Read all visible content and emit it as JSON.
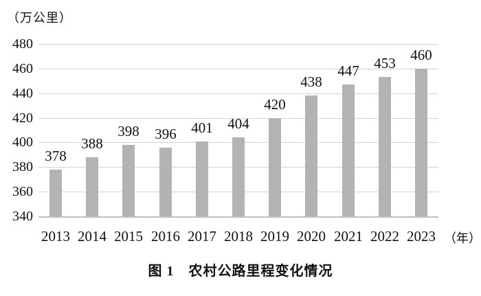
{
  "chart_data": {
    "type": "bar",
    "title": "图 1　农村公路里程变化情况",
    "ylabel": "（万公里）",
    "xlabel": "（年）",
    "categories": [
      "2013",
      "2014",
      "2015",
      "2016",
      "2017",
      "2018",
      "2019",
      "2020",
      "2021",
      "2022",
      "2023"
    ],
    "values": [
      378,
      388,
      398,
      396,
      401,
      404,
      420,
      438,
      447,
      453,
      460
    ],
    "ylim": [
      340,
      480
    ],
    "y_ticks": [
      340,
      360,
      380,
      400,
      420,
      440,
      460,
      480
    ],
    "grid": true,
    "legend_position": "none",
    "bar_color": "#b3b3b3",
    "gridline_color": "#d2d2d2",
    "axisline_color": "#c0c0c0",
    "text_color": "#111111"
  }
}
